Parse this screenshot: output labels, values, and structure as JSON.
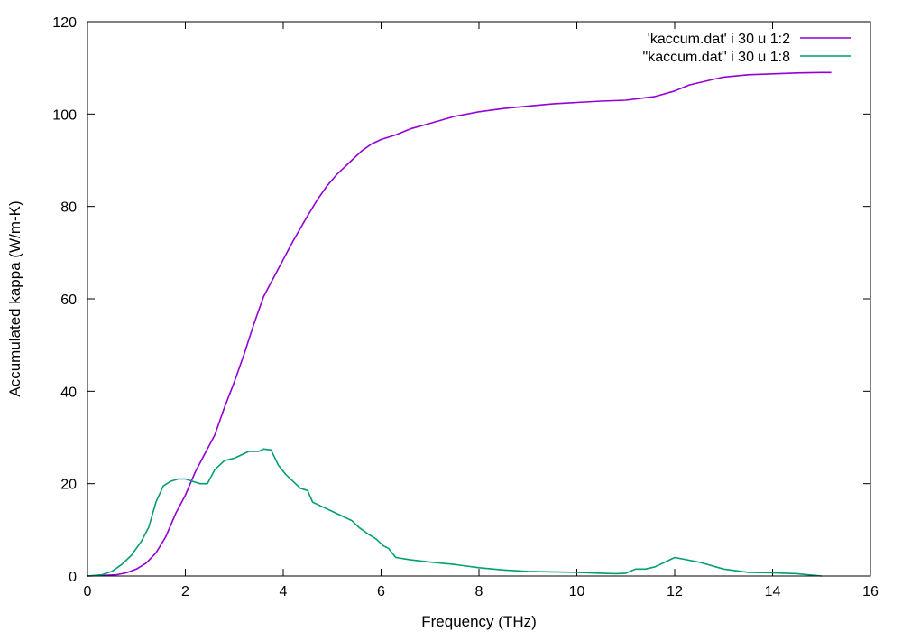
{
  "chart_data": {
    "type": "line",
    "title": "",
    "xlabel": "Frequency (THz)",
    "ylabel": "Accumulated kappa (W/m-K)",
    "xlim": [
      0,
      16
    ],
    "ylim": [
      0,
      120
    ],
    "xticks": [
      0,
      2,
      4,
      6,
      8,
      10,
      12,
      14,
      16
    ],
    "yticks": [
      0,
      20,
      40,
      60,
      80,
      100,
      120
    ],
    "grid": false,
    "legend_position": "top-right",
    "series": [
      {
        "name": "'kaccum.dat' i 30 u 1:2",
        "color": "#9400d3",
        "x": [
          0,
          0.3,
          0.6,
          0.8,
          1.0,
          1.2,
          1.4,
          1.6,
          1.8,
          2.0,
          2.2,
          2.4,
          2.6,
          2.8,
          3.0,
          3.2,
          3.4,
          3.6,
          3.8,
          4.0,
          4.2,
          4.5,
          4.7,
          4.9,
          5.1,
          5.4,
          5.6,
          5.8,
          6.0,
          6.3,
          6.6,
          7.0,
          7.5,
          8.0,
          8.5,
          9.0,
          9.5,
          10.0,
          10.5,
          11.0,
          11.3,
          11.6,
          12.0,
          12.3,
          12.7,
          13.0,
          13.5,
          14.0,
          14.5,
          15.0,
          15.2
        ],
        "y": [
          0,
          0.1,
          0.3,
          0.7,
          1.5,
          2.8,
          5.0,
          8.5,
          13.5,
          17.5,
          22.5,
          26.5,
          30.5,
          36.5,
          42.0,
          48.0,
          54.5,
          60.5,
          64.5,
          68.5,
          72.5,
          78.0,
          81.5,
          84.5,
          87.0,
          90.0,
          92.0,
          93.5,
          94.5,
          95.5,
          96.8,
          98.0,
          99.5,
          100.5,
          101.2,
          101.7,
          102.2,
          102.5,
          102.8,
          103.0,
          103.4,
          103.8,
          105.0,
          106.3,
          107.3,
          108.0,
          108.5,
          108.7,
          108.9,
          109.0,
          109.0
        ]
      },
      {
        "name": "\"kaccum.dat\" i 30 u 1:8",
        "color": "#009e73",
        "x": [
          0,
          0.3,
          0.5,
          0.7,
          0.9,
          1.1,
          1.25,
          1.4,
          1.55,
          1.7,
          1.85,
          2.0,
          2.15,
          2.3,
          2.45,
          2.6,
          2.8,
          3.0,
          3.1,
          3.3,
          3.5,
          3.6,
          3.75,
          3.9,
          4.05,
          4.2,
          4.35,
          4.5,
          4.6,
          4.8,
          5.0,
          5.2,
          5.4,
          5.55,
          5.75,
          5.9,
          6.05,
          6.15,
          6.3,
          6.6,
          7.0,
          7.5,
          8.0,
          8.5,
          9.0,
          9.5,
          10.0,
          10.5,
          10.8,
          11.0,
          11.2,
          11.4,
          11.6,
          12.0,
          12.5,
          13.0,
          13.5,
          14.0,
          14.5,
          15.0
        ],
        "y": [
          0,
          0.3,
          1.0,
          2.5,
          4.5,
          7.5,
          10.5,
          16.0,
          19.5,
          20.5,
          21.0,
          21.0,
          20.5,
          20.0,
          20.0,
          23.0,
          25.0,
          25.5,
          26.0,
          27.0,
          27.0,
          27.5,
          27.3,
          24.0,
          22.0,
          20.5,
          19.0,
          18.5,
          16.0,
          15.0,
          14.0,
          13.0,
          12.0,
          10.5,
          9.0,
          8.0,
          6.5,
          6.0,
          4.0,
          3.5,
          3.0,
          2.5,
          1.8,
          1.3,
          1.0,
          0.9,
          0.8,
          0.6,
          0.5,
          0.6,
          1.5,
          1.5,
          2.0,
          4.0,
          3.0,
          1.5,
          0.8,
          0.7,
          0.5,
          0.0
        ]
      }
    ]
  }
}
